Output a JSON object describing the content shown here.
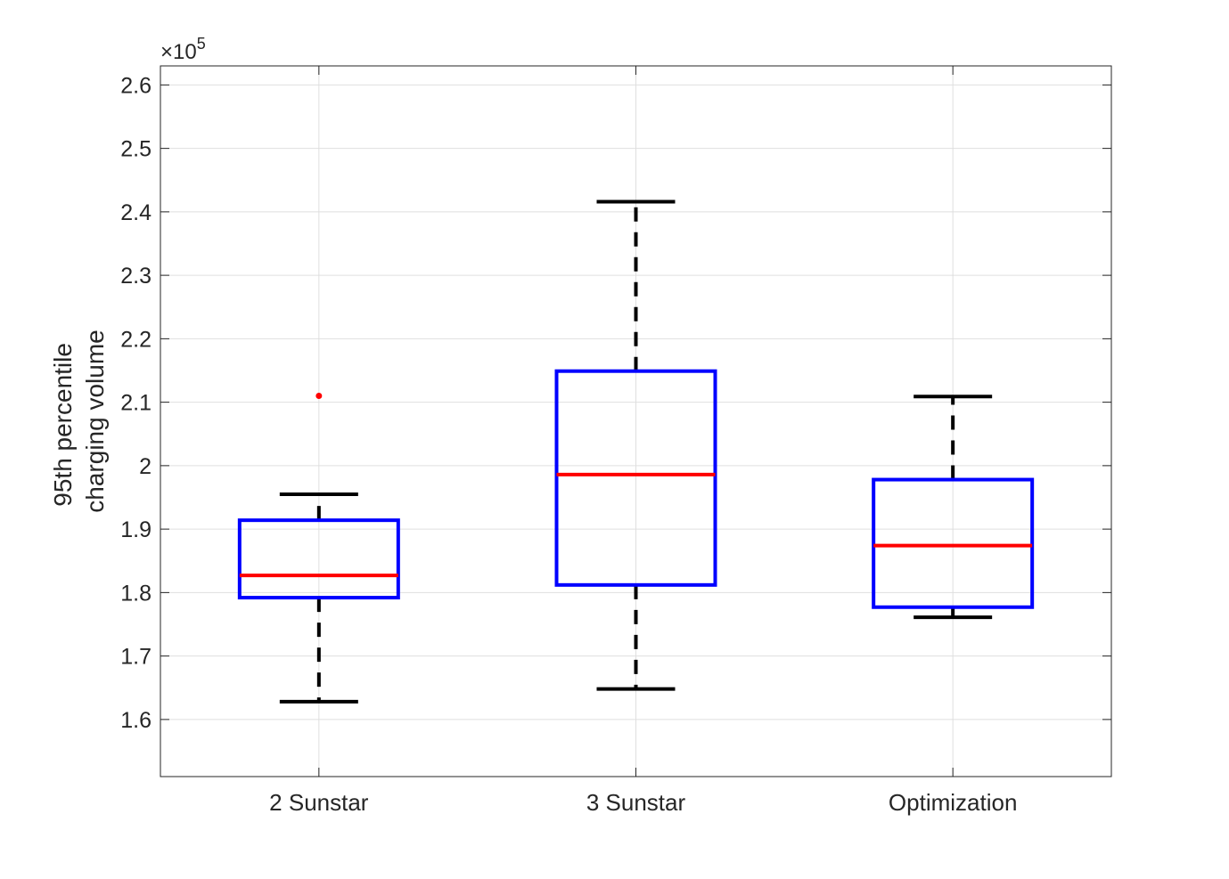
{
  "chart_data": {
    "type": "box",
    "title": "",
    "xlabel": "",
    "ylabel_lines": [
      "95th percentile",
      "charging volume"
    ],
    "y_multiplier_base": "×10",
    "y_multiplier_exponent": "5",
    "ylim": [
      1.51,
      2.63
    ],
    "yticks": [
      1.6,
      1.7,
      1.8,
      1.9,
      2.0,
      2.1,
      2.2,
      2.3,
      2.4,
      2.5,
      2.6
    ],
    "ytick_labels": [
      "1.6",
      "1.7",
      "1.8",
      "1.9",
      "2",
      "2.1",
      "2.2",
      "2.3",
      "2.4",
      "2.5",
      "2.6"
    ],
    "grid": true,
    "categories": [
      "2 Sunstar",
      "3 Sunstar",
      "Optimization"
    ],
    "boxes": [
      {
        "category": "2 Sunstar",
        "whisker_low": 1.628,
        "q1": 1.792,
        "median": 1.827,
        "q3": 1.914,
        "whisker_high": 1.955,
        "outliers": [
          2.11
        ]
      },
      {
        "category": "3 Sunstar",
        "whisker_low": 1.648,
        "q1": 1.812,
        "median": 1.986,
        "q3": 2.149,
        "whisker_high": 2.416,
        "outliers": []
      },
      {
        "category": "Optimization",
        "whisker_low": 1.761,
        "q1": 1.777,
        "median": 1.874,
        "q3": 1.978,
        "whisker_high": 2.109,
        "outliers": []
      }
    ],
    "colors": {
      "box": "#0000ff",
      "median": "#ff0000",
      "whisker": "#000000",
      "outlier": "#ff0000",
      "grid": "#dfdfdf",
      "axis": "#262626"
    }
  }
}
